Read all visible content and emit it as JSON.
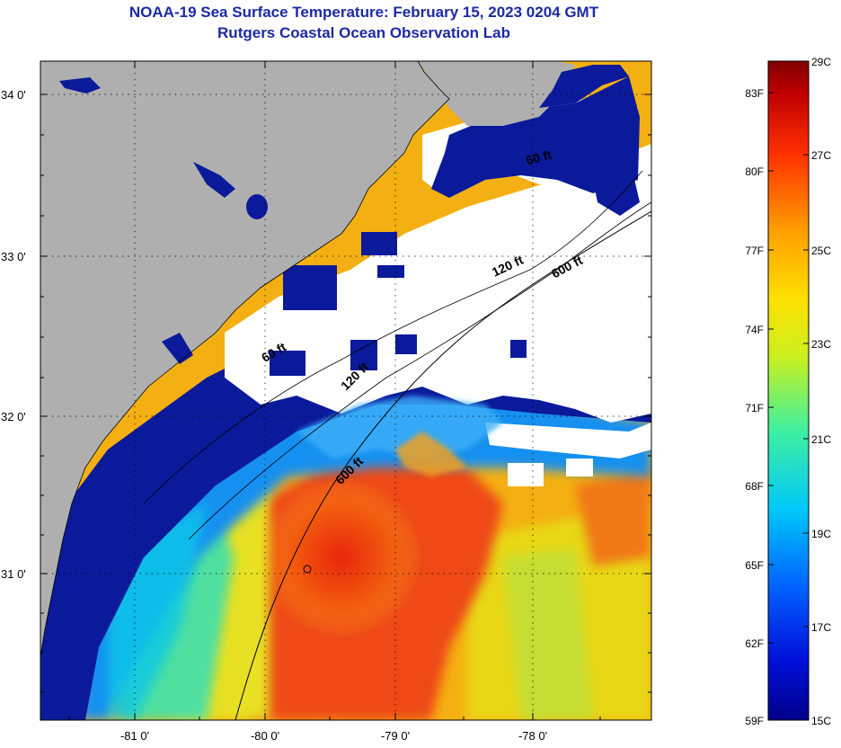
{
  "title": "NOAA-19 Sea Surface Temperature:  February 15, 2023 0204 GMT",
  "subtitle": "Rutgers Coastal Ocean Observation Lab",
  "map": {
    "lat_ticks": [
      "34 0'",
      "33 0'",
      "32 0'",
      "31 0'"
    ],
    "lon_ticks": [
      "-81 0'",
      "-80 0'",
      "-79 0'",
      "-78 0'"
    ],
    "contour_labels": [
      "60 ft",
      "120 ft",
      "600 ft",
      "60 ft",
      "120 ft",
      "600 ft"
    ],
    "colors": {
      "land": "#afafaf",
      "cloud": "#ffffff",
      "cold_water": "#0a1a9a"
    }
  },
  "colorbar": {
    "fahrenheit": [
      "83F",
      "80F",
      "77F",
      "74F",
      "71F",
      "68F",
      "65F",
      "62F",
      "59F"
    ],
    "celsius": [
      "29C",
      "27C",
      "25C",
      "23C",
      "21C",
      "19C",
      "17C",
      "15C"
    ]
  }
}
